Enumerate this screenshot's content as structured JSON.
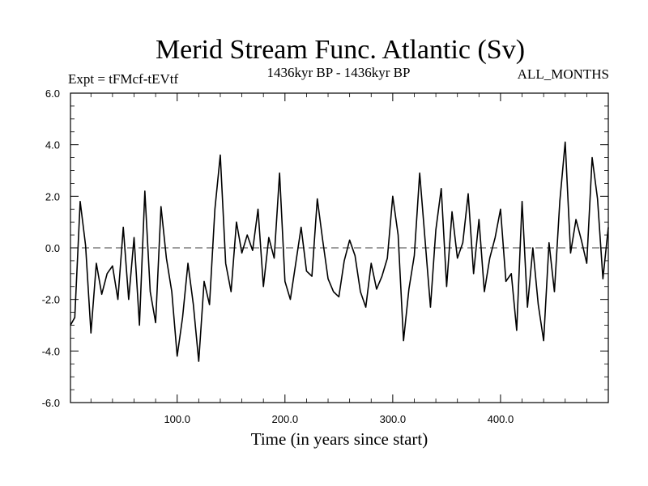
{
  "chart_data": {
    "type": "line",
    "title": "Merid Stream Func. Atlantic (Sv)",
    "subtitle": "1436kyr BP - 1436kyr BP",
    "left_label": "Expt = tFMcf-tEVtf",
    "right_label": "ALL_MONTHS",
    "xlabel": "Time (in years since start)",
    "ylabel": "",
    "xlim": [
      1,
      500
    ],
    "ylim": [
      -6,
      6
    ],
    "x_ticks": [
      {
        "value": 100,
        "label": "100.0"
      },
      {
        "value": 200,
        "label": "200.0"
      },
      {
        "value": 300,
        "label": "300.0"
      },
      {
        "value": 400,
        "label": "400.0"
      }
    ],
    "y_ticks": [
      {
        "value": 6,
        "label": "6.0"
      },
      {
        "value": 4,
        "label": "4.0"
      },
      {
        "value": 2,
        "label": "2.0"
      },
      {
        "value": 0,
        "label": "0.0"
      },
      {
        "value": -2,
        "label": "-2.0"
      },
      {
        "value": -4,
        "label": "-4.0"
      },
      {
        "value": -6,
        "label": "-6.0"
      }
    ],
    "zero_line": true,
    "series": [
      {
        "name": "Merid Stream Func. Atlantic",
        "x": [
          1,
          5,
          10,
          15,
          20,
          25,
          30,
          35,
          40,
          45,
          50,
          55,
          60,
          65,
          70,
          75,
          80,
          85,
          90,
          95,
          100,
          105,
          110,
          115,
          120,
          125,
          130,
          135,
          140,
          145,
          150,
          155,
          160,
          165,
          170,
          175,
          180,
          185,
          190,
          195,
          200,
          205,
          210,
          215,
          220,
          225,
          230,
          235,
          240,
          245,
          250,
          255,
          260,
          265,
          270,
          275,
          280,
          285,
          290,
          295,
          300,
          305,
          310,
          315,
          320,
          325,
          330,
          335,
          340,
          345,
          350,
          355,
          360,
          365,
          370,
          375,
          380,
          385,
          390,
          395,
          400,
          405,
          410,
          415,
          420,
          425,
          430,
          435,
          440,
          445,
          450,
          455,
          460,
          465,
          470,
          475,
          480,
          485,
          490,
          495,
          500
        ],
        "values": [
          -3.0,
          -2.7,
          1.8,
          0.1,
          -3.3,
          -0.6,
          -1.8,
          -1.0,
          -0.7,
          -2.0,
          0.8,
          -2.0,
          0.4,
          -3.0,
          2.2,
          -1.7,
          -2.9,
          1.6,
          -0.4,
          -1.7,
          -4.2,
          -2.7,
          -0.6,
          -2.2,
          -4.4,
          -1.3,
          -2.2,
          1.5,
          3.6,
          -0.6,
          -1.7,
          1.0,
          -0.2,
          0.5,
          -0.1,
          1.5,
          -1.5,
          0.4,
          -0.4,
          2.9,
          -1.3,
          -2.0,
          -0.6,
          0.8,
          -0.9,
          -1.1,
          1.9,
          0.3,
          -1.2,
          -1.7,
          -1.9,
          -0.5,
          0.3,
          -0.3,
          -1.7,
          -2.3,
          -0.6,
          -1.6,
          -1.1,
          -0.4,
          2.0,
          0.5,
          -3.6,
          -1.6,
          -0.3,
          2.9,
          0.3,
          -2.3,
          0.7,
          2.3,
          -1.5,
          1.4,
          -0.4,
          0.2,
          2.1,
          -1.0,
          1.1,
          -1.7,
          -0.4,
          0.4,
          1.5,
          -1.3,
          -1.0,
          -3.2,
          1.8,
          -2.3,
          0.0,
          -2.2,
          -3.6,
          0.2,
          -1.7,
          1.8,
          4.1,
          -0.2,
          1.1,
          0.3,
          -0.6,
          3.5,
          1.9,
          -1.2,
          0.8
        ]
      }
    ]
  }
}
